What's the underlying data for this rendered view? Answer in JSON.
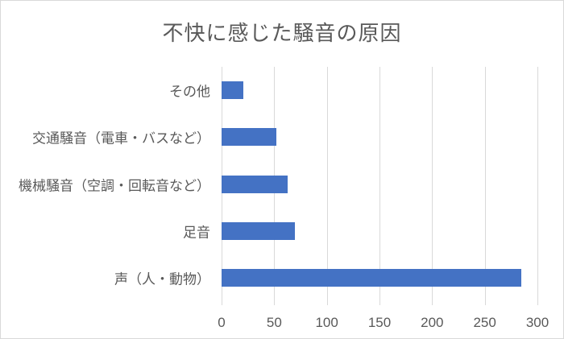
{
  "chart_data": {
    "type": "bar",
    "orientation": "horizontal",
    "title": "不快に感じた騒音の原因",
    "categories": [
      "その他",
      "交通騒音（電車・バスなど）",
      "機械騒音（空調・回転音など）",
      "足音",
      "声（人・動物）"
    ],
    "values": [
      21,
      52,
      63,
      70,
      285
    ],
    "xlabel": "",
    "ylabel": "",
    "xlim": [
      0,
      300
    ],
    "xticks": [
      0,
      50,
      100,
      150,
      200,
      250,
      300
    ],
    "grid": true,
    "legend_position": "none"
  },
  "colors": {
    "bar": "#4472C4",
    "gridline": "#D9D9D9",
    "text": "#595959",
    "border": "#D9D9D9",
    "background": "#FFFFFF"
  }
}
